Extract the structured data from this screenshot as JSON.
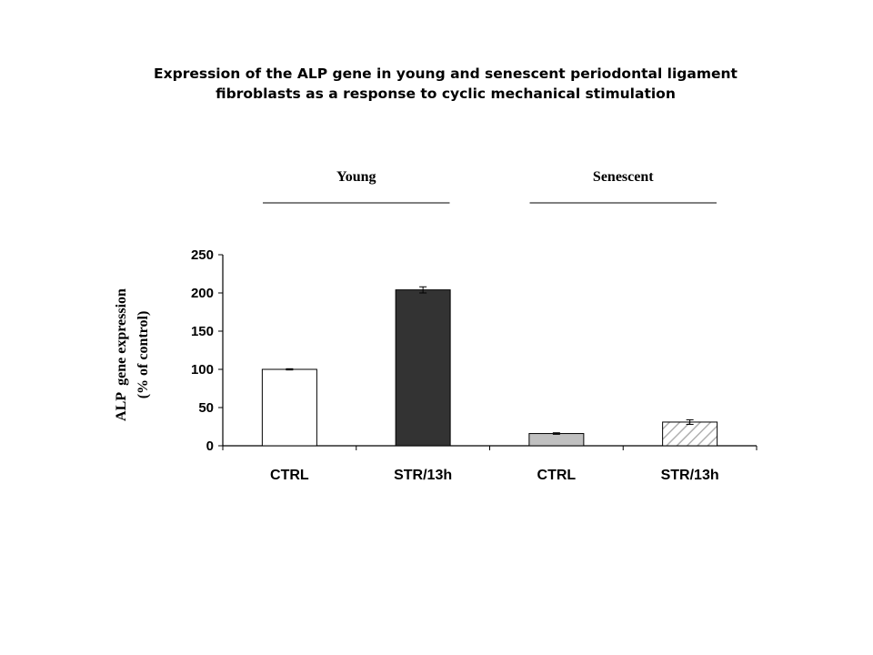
{
  "title_lines": [
    "Expression of the ALP gene in young and senescent periodontal ligament",
    "fibroblasts as a response to cyclic mechanical stimulation"
  ],
  "chart_data": {
    "type": "bar",
    "title": "Expression of the ALP gene in young and senescent periodontal ligament fibroblasts as a response to cyclic mechanical stimulation",
    "ylabel_lines": [
      "ALP  gene expression",
      "(% of control)"
    ],
    "xlabel": "",
    "ylim": [
      0,
      250
    ],
    "yticks": [
      0,
      50,
      100,
      150,
      200,
      250
    ],
    "categories": [
      "CTRL",
      "STR/13h",
      "CTRL",
      "STR/13h"
    ],
    "values": [
      100,
      204,
      16,
      31
    ],
    "errors": [
      0.8,
      4,
      1,
      3
    ],
    "bar_fills": [
      "#ffffff",
      "#333333",
      "#c0c0c0",
      "hatch"
    ],
    "groups": [
      {
        "label": "Young",
        "categories": [
          0,
          1
        ]
      },
      {
        "label": "Senescent",
        "categories": [
          2,
          3
        ]
      }
    ],
    "grid": false,
    "legend": "none"
  }
}
